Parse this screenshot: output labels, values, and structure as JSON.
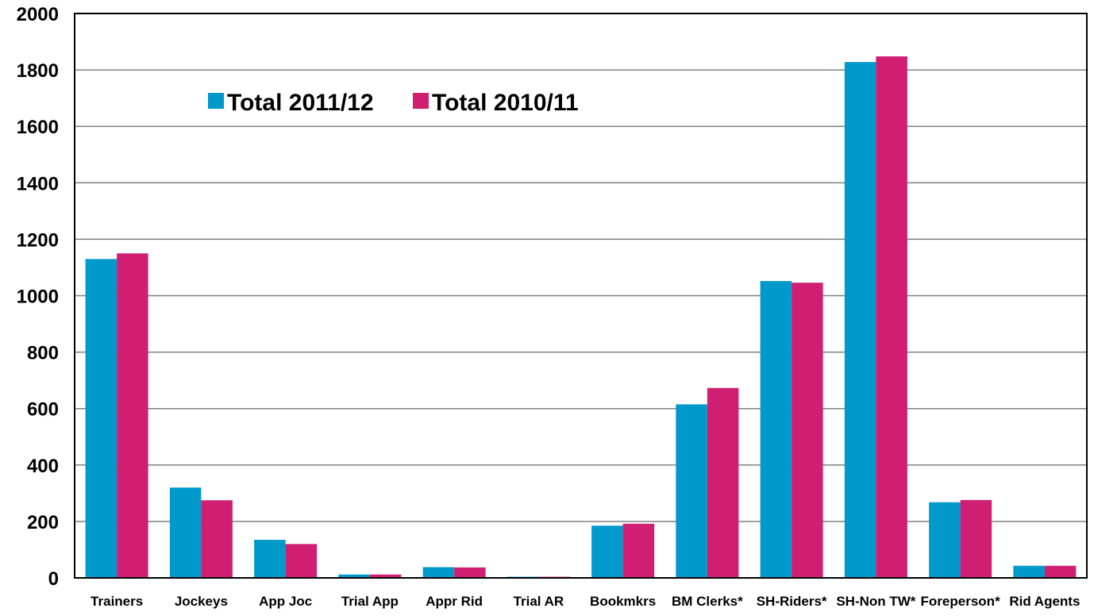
{
  "chart_data": {
    "type": "bar",
    "title": "",
    "xlabel": "",
    "ylabel": "",
    "ylim": [
      0,
      2000
    ],
    "yticks": [
      "0",
      "200",
      "400",
      "600",
      "800",
      "1000",
      "1200",
      "1400",
      "1600",
      "1800",
      "2000"
    ],
    "grid": true,
    "legend_position": "top-left",
    "categories": [
      "Trainers",
      "Jockeys",
      "App Joc",
      "Trial App",
      "Appr Rid",
      "Trial AR",
      "Bookmkrs",
      "BM Clerks*",
      "SH-Riders*",
      "SH-Non TW*",
      "Foreperson*",
      "Rid Agents"
    ],
    "series": [
      {
        "name": "Total 2011/12",
        "color": "#0099CC",
        "values": [
          1130,
          320,
          135,
          12,
          38,
          4,
          185,
          615,
          1052,
          1828,
          268,
          43
        ]
      },
      {
        "name": "Total 2010/11",
        "color": "#D01F73",
        "values": [
          1150,
          275,
          120,
          12,
          37,
          4,
          192,
          673,
          1046,
          1848,
          276,
          43
        ]
      }
    ]
  }
}
